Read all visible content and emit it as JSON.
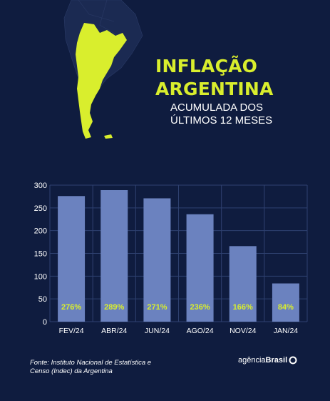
{
  "header": {
    "title_line1": "INFLAÇÃO",
    "title_line2": "ARGENTINA",
    "subtitle_line1": "ACUMULADA DOS",
    "subtitle_line2": "ÚLTIMOS 12 MESES"
  },
  "colors": {
    "background": "#0f1c3f",
    "accent": "#d9ee2d",
    "bar": "#6b82bf",
    "map_dark": "#1b2a52"
  },
  "chart_data": {
    "type": "bar",
    "categories": [
      "FEV/24",
      "ABR/24",
      "JUN/24",
      "AGO/24",
      "NOV/24",
      "JAN/24"
    ],
    "values": [
      276,
      289,
      271,
      236,
      166,
      84
    ],
    "data_labels": [
      "276%",
      "289%",
      "271%",
      "236%",
      "166%",
      "84%"
    ],
    "yticks": [
      "0",
      "50",
      "100",
      "150",
      "200",
      "250",
      "300"
    ],
    "ylim": [
      0,
      300
    ],
    "grid": true
  },
  "footer": {
    "source": "Fonte: Instituto Nacional de Estatística e Censo (Indec) da Argentina",
    "logo_prefix": "agência",
    "logo_suffix": "Brasil"
  }
}
